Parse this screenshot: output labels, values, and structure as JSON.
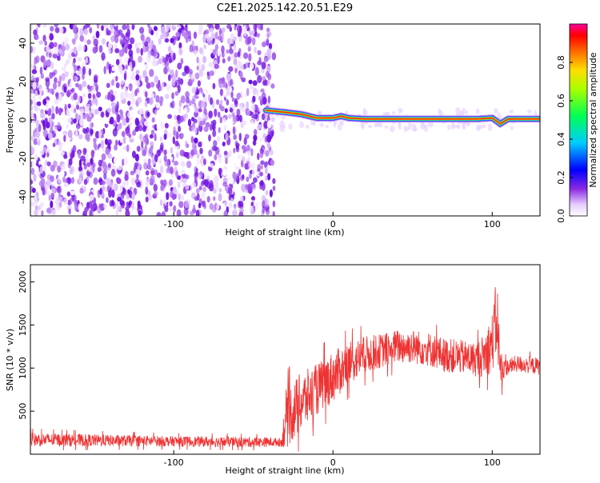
{
  "title": "C2E1.2025.142.20.51.E29",
  "chart_data": [
    {
      "type": "heatmap",
      "xlabel": "Height of straight line (km)",
      "ylabel": "Frequency (Hz)",
      "xlim": [
        -190,
        130
      ],
      "ylim": [
        -50,
        50
      ],
      "xticks": [
        -100,
        0,
        100
      ],
      "xtick_labels": [
        "-100",
        "0",
        "100"
      ],
      "yticks": [
        -40,
        -20,
        0,
        20,
        40
      ],
      "ytick_labels": [
        "-40",
        "-20",
        "0",
        "20",
        "40"
      ],
      "noise_region_x": [
        -190,
        -40
      ],
      "signal_region_x": [
        -40,
        130
      ],
      "signal_track": {
        "x": [
          -42,
          -30,
          -20,
          -10,
          0,
          5,
          10,
          20,
          40,
          60,
          80,
          90,
          100,
          105,
          110,
          130
        ],
        "freq": [
          5,
          4,
          3,
          1,
          1,
          2,
          1,
          0.5,
          0.5,
          0.5,
          0.5,
          0.5,
          1,
          -2,
          0.5,
          0.5
        ]
      },
      "colorbar": {
        "label": "Normalized spectral amplitude",
        "range": [
          0,
          1
        ],
        "ticks": [
          0.0,
          0.2,
          0.4,
          0.6,
          0.8
        ],
        "tick_labels": [
          "0.0",
          "0.2",
          "0.4",
          "0.6",
          "0.8"
        ]
      },
      "grid": false
    },
    {
      "type": "line",
      "xlabel": "Height of straight line (km)",
      "ylabel": "SNR (10 * v/v)",
      "xlim": [
        -190,
        130
      ],
      "ylim": [
        0,
        2200
      ],
      "xticks": [
        -100,
        0,
        100
      ],
      "xtick_labels": [
        "-100",
        "0",
        "100"
      ],
      "yticks": [
        500,
        1000,
        1500,
        2000
      ],
      "ytick_labels": [
        "500",
        "1000",
        "1500",
        "2000"
      ],
      "series": [
        {
          "color": "#ee3333",
          "x": [
            -190,
            -150,
            -100,
            -50,
            -32,
            -30,
            -20,
            -10,
            0,
            10,
            20,
            30,
            40,
            50,
            60,
            70,
            80,
            90,
            95,
            100,
            103,
            105,
            108,
            115,
            130
          ],
          "mean": [
            170,
            160,
            150,
            140,
            140,
            400,
            600,
            750,
            900,
            1050,
            1150,
            1200,
            1250,
            1250,
            1220,
            1150,
            1130,
            1100,
            1150,
            1300,
            1600,
            1000,
            1000,
            1050,
            1020
          ],
          "noise": [
            80,
            70,
            60,
            60,
            50,
            350,
            350,
            300,
            300,
            250,
            220,
            200,
            200,
            200,
            200,
            200,
            200,
            200,
            250,
            350,
            500,
            250,
            100,
            100,
            100
          ]
        }
      ],
      "grid": false
    }
  ]
}
